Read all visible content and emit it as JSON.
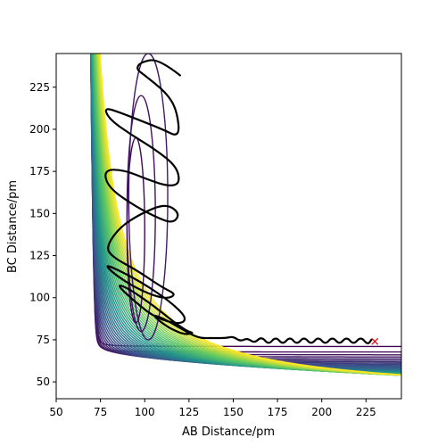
{
  "chart_data": {
    "type": "contour",
    "title": "",
    "xlabel": "AB Distance/pm",
    "ylabel": "BC Distance/pm",
    "xlim": [
      50,
      245
    ],
    "ylim": [
      40,
      245
    ],
    "xticks": [
      50,
      75,
      100,
      125,
      150,
      175,
      200,
      225
    ],
    "yticks": [
      50,
      75,
      100,
      125,
      150,
      175,
      200,
      225
    ],
    "colormap": [
      "#440154",
      "#3b528b",
      "#21918c",
      "#5ec962",
      "#fde725"
    ],
    "contour_levels": 40,
    "trajectory_color": "#000000",
    "trajectory": [
      [
        120,
        232
      ],
      [
        108,
        242
      ],
      [
        98,
        240
      ],
      [
        95,
        236
      ],
      [
        100,
        232
      ],
      [
        112,
        222
      ],
      [
        118,
        212
      ],
      [
        120,
        195
      ],
      [
        110,
        200
      ],
      [
        98,
        205
      ],
      [
        86,
        210
      ],
      [
        77,
        213
      ],
      [
        80,
        206
      ],
      [
        92,
        197
      ],
      [
        106,
        188
      ],
      [
        118,
        178
      ],
      [
        120,
        168
      ],
      [
        114,
        166
      ],
      [
        102,
        170
      ],
      [
        88,
        176
      ],
      [
        77,
        176
      ],
      [
        79,
        166
      ],
      [
        92,
        156
      ],
      [
        106,
        148
      ],
      [
        116,
        144
      ],
      [
        120,
        150
      ],
      [
        112,
        156
      ],
      [
        98,
        150
      ],
      [
        86,
        142
      ],
      [
        78,
        130
      ],
      [
        82,
        124
      ],
      [
        96,
        116
      ],
      [
        110,
        106
      ],
      [
        118,
        102
      ],
      [
        112,
        99
      ],
      [
        98,
        104
      ],
      [
        84,
        113
      ],
      [
        77,
        120
      ],
      [
        86,
        116
      ],
      [
        100,
        108
      ],
      [
        114,
        98
      ],
      [
        124,
        88
      ],
      [
        120,
        84
      ],
      [
        106,
        88
      ],
      [
        94,
        98
      ],
      [
        84,
        108
      ],
      [
        90,
        106
      ],
      [
        104,
        96
      ],
      [
        116,
        86
      ],
      [
        124,
        80
      ],
      [
        128,
        79
      ],
      [
        122,
        78
      ],
      [
        112,
        83
      ],
      [
        104,
        90
      ],
      [
        110,
        88
      ],
      [
        120,
        82
      ],
      [
        130,
        76
      ],
      [
        138,
        76
      ],
      [
        146,
        76
      ],
      [
        150,
        77
      ],
      [
        154,
        74
      ],
      [
        158,
        76
      ],
      [
        162,
        73
      ],
      [
        166,
        77
      ],
      [
        170,
        72
      ],
      [
        174,
        77
      ],
      [
        178,
        72
      ],
      [
        182,
        77
      ],
      [
        186,
        72
      ],
      [
        190,
        77
      ],
      [
        194,
        72
      ],
      [
        198,
        77
      ],
      [
        202,
        72
      ],
      [
        206,
        77
      ],
      [
        210,
        72
      ],
      [
        214,
        77
      ],
      [
        218,
        72
      ],
      [
        222,
        77
      ],
      [
        226,
        72
      ],
      [
        228,
        75
      ]
    ],
    "end_marker": {
      "x": 230,
      "y": 74,
      "color": "#ff0000",
      "symbol": "x"
    }
  }
}
